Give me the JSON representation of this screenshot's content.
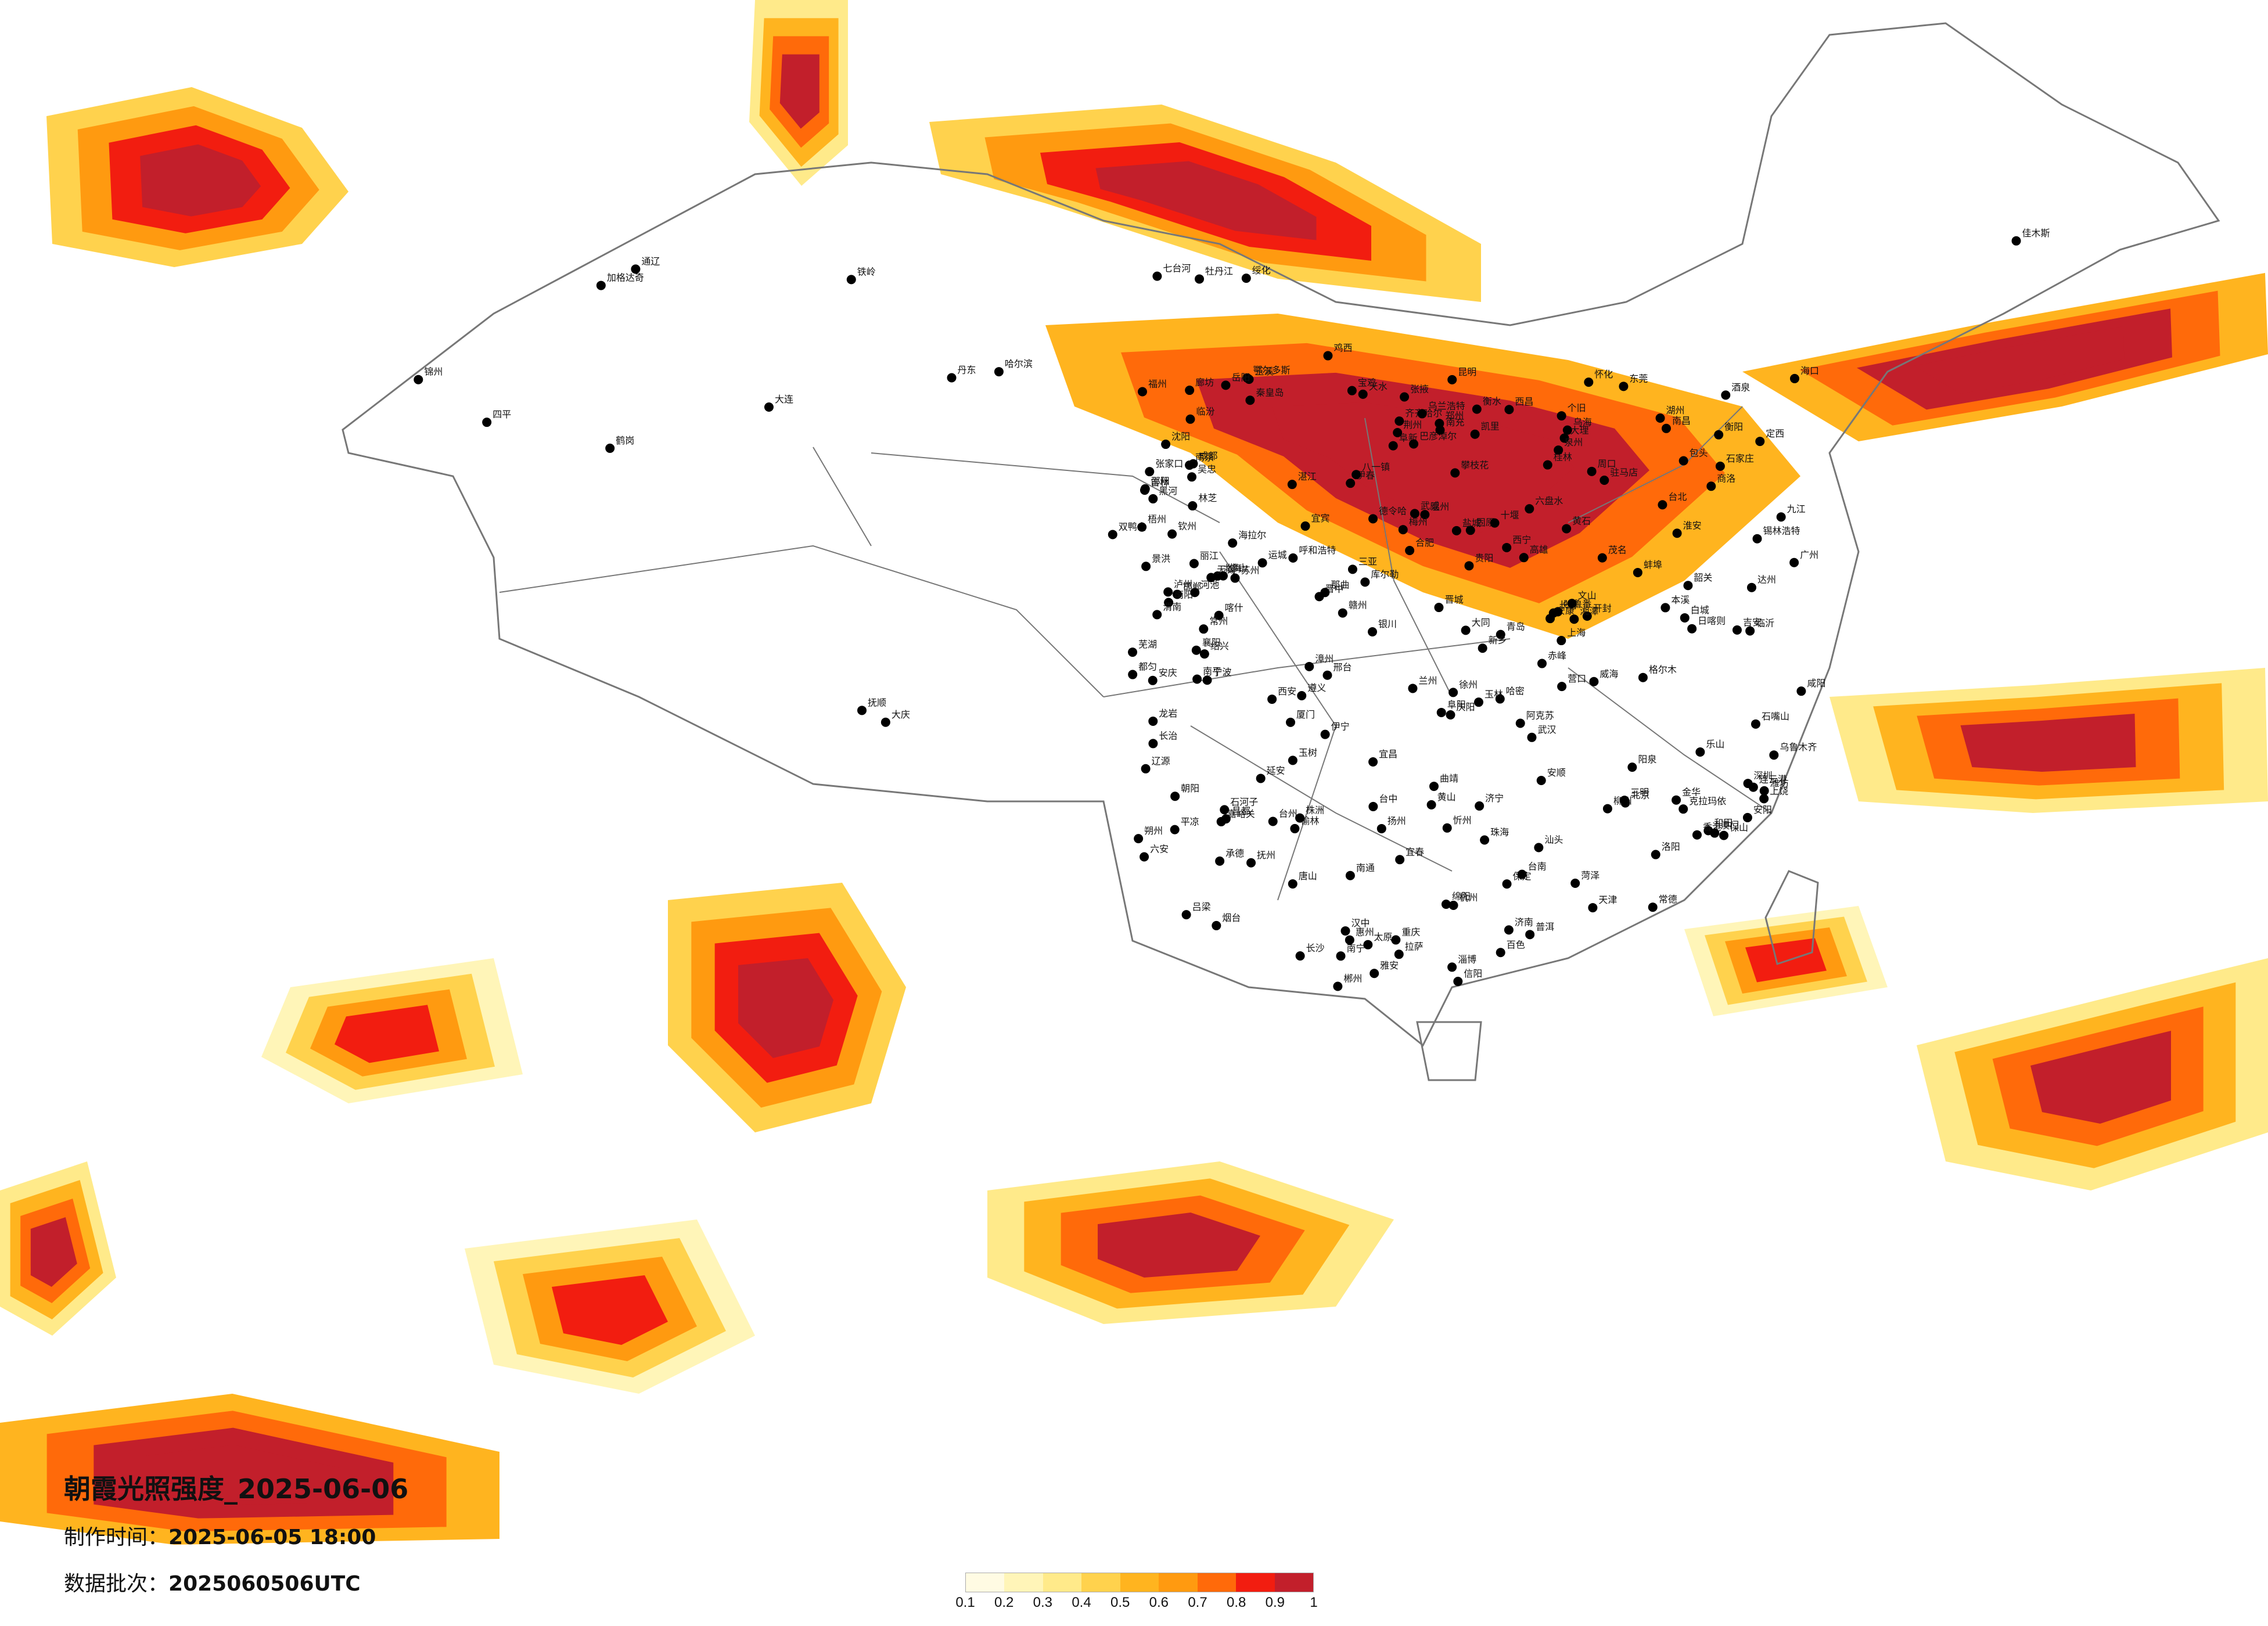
{
  "header": {
    "title": "朝霞光照强度_2025-06-06",
    "made_label": "制作时间：",
    "made_value": "2025-06-05 18:00",
    "batch_label": "数据批次：",
    "batch_value": "2025060506UTC"
  },
  "legend": {
    "ticks": [
      "0.1",
      "0.2",
      "0.3",
      "0.4",
      "0.5",
      "0.6",
      "0.7",
      "0.8",
      "0.9",
      "1"
    ],
    "colors": [
      "#fffbe3",
      "#fff5b8",
      "#ffea8a",
      "#ffd24d",
      "#ffb41f",
      "#ff9a10",
      "#ff6a0a",
      "#f21d10",
      "#c21f2b"
    ]
  },
  "map": {
    "colors": {
      "water": "#ffffff",
      "border": "#777777",
      "dot": "#000000"
    },
    "cities": [
      "海拉尔",
      "加格达奇",
      "黑河",
      "齐齐哈尔",
      "大庆",
      "绥化",
      "伊春",
      "鹤岗",
      "佳木斯",
      "双鸭山",
      "七台河",
      "鸡西",
      "哈尔滨",
      "牡丹江",
      "乌兰浩特",
      "白城",
      "通辽",
      "四平",
      "长春",
      "吉林",
      "辽源",
      "沈阳",
      "铁岭",
      "抚顺",
      "本溪",
      "丹东",
      "大连",
      "营口",
      "锦州",
      "阜新",
      "朝阳",
      "赤峰",
      "承德",
      "锡林浩特",
      "张家口",
      "北京",
      "天津",
      "唐山",
      "秦皇岛",
      "廊坊",
      "保定",
      "石家庄",
      "衡水",
      "邢台",
      "邯郸",
      "呼和浩特",
      "包头",
      "鄂尔多斯",
      "乌海",
      "巴彦淖尔",
      "大同",
      "朔州",
      "忻州",
      "太原",
      "阳泉",
      "晋中",
      "吕梁",
      "临汾",
      "运城",
      "长治",
      "晋城",
      "济南",
      "青岛",
      "烟台",
      "威海",
      "潍坊",
      "淄博",
      "临沂",
      "济宁",
      "菏泽",
      "郑州",
      "开封",
      "洛阳",
      "新乡",
      "安阳",
      "南阳",
      "信阳",
      "周口",
      "驻马店",
      "西安",
      "宝鸡",
      "咸阳",
      "渭南",
      "延安",
      "榆林",
      "汉中",
      "安康",
      "商洛",
      "银川",
      "石嘴山",
      "吴忠",
      "固原",
      "兰州",
      "天水",
      "平凉",
      "庆阳",
      "定西",
      "武威",
      "张掖",
      "嘉峪关",
      "酒泉",
      "西宁",
      "德令哈",
      "格尔木",
      "玉树",
      "拉萨",
      "日喀则",
      "林芝",
      "昌都",
      "那曲",
      "八一镇",
      "乌鲁木齐",
      "克拉玛依",
      "伊宁",
      "石河子",
      "库尔勒",
      "阿克苏",
      "喀什",
      "和田",
      "哈密",
      "吐鲁番",
      "成都",
      "重庆",
      "绵阳",
      "南充",
      "达州",
      "宜宾",
      "泸州",
      "雅安",
      "乐山",
      "西昌",
      "攀枝花",
      "贵阳",
      "遵义",
      "六盘水",
      "安顺",
      "凯里",
      "都匀",
      "昆明",
      "大理",
      "丽江",
      "曲靖",
      "玉溪",
      "保山",
      "普洱",
      "景洪",
      "个旧",
      "文山",
      "南宁",
      "桂林",
      "柳州",
      "梧州",
      "北海",
      "钦州",
      "玉林",
      "百色",
      "河池",
      "南京",
      "苏州",
      "无锡",
      "常州",
      "南通",
      "徐州",
      "连云港",
      "扬州",
      "盐城",
      "淮安",
      "上海",
      "杭州",
      "宁波",
      "温州",
      "金华",
      "台州",
      "绍兴",
      "湖州",
      "合肥",
      "芜湖",
      "蚌埠",
      "安庆",
      "阜阳",
      "六安",
      "黄山",
      "南昌",
      "九江",
      "赣州",
      "上饶",
      "吉安",
      "宜春",
      "抚州",
      "武汉",
      "宜昌",
      "襄阳",
      "荆州",
      "十堰",
      "黄石",
      "长沙",
      "株洲",
      "湘潭",
      "衡阳",
      "岳阳",
      "常德",
      "怀化",
      "邵阳",
      "郴州",
      "福州",
      "厦门",
      "泉州",
      "漳州",
      "南平",
      "龙岩",
      "三明",
      "广州",
      "深圳",
      "东莞",
      "佛山",
      "珠海",
      "汕头",
      "湛江",
      "茂名",
      "韶关",
      "梅州",
      "惠州",
      "海口",
      "三亚",
      "台北",
      "台中",
      "台南",
      "高雄",
      "香港",
      "澳门"
    ]
  }
}
